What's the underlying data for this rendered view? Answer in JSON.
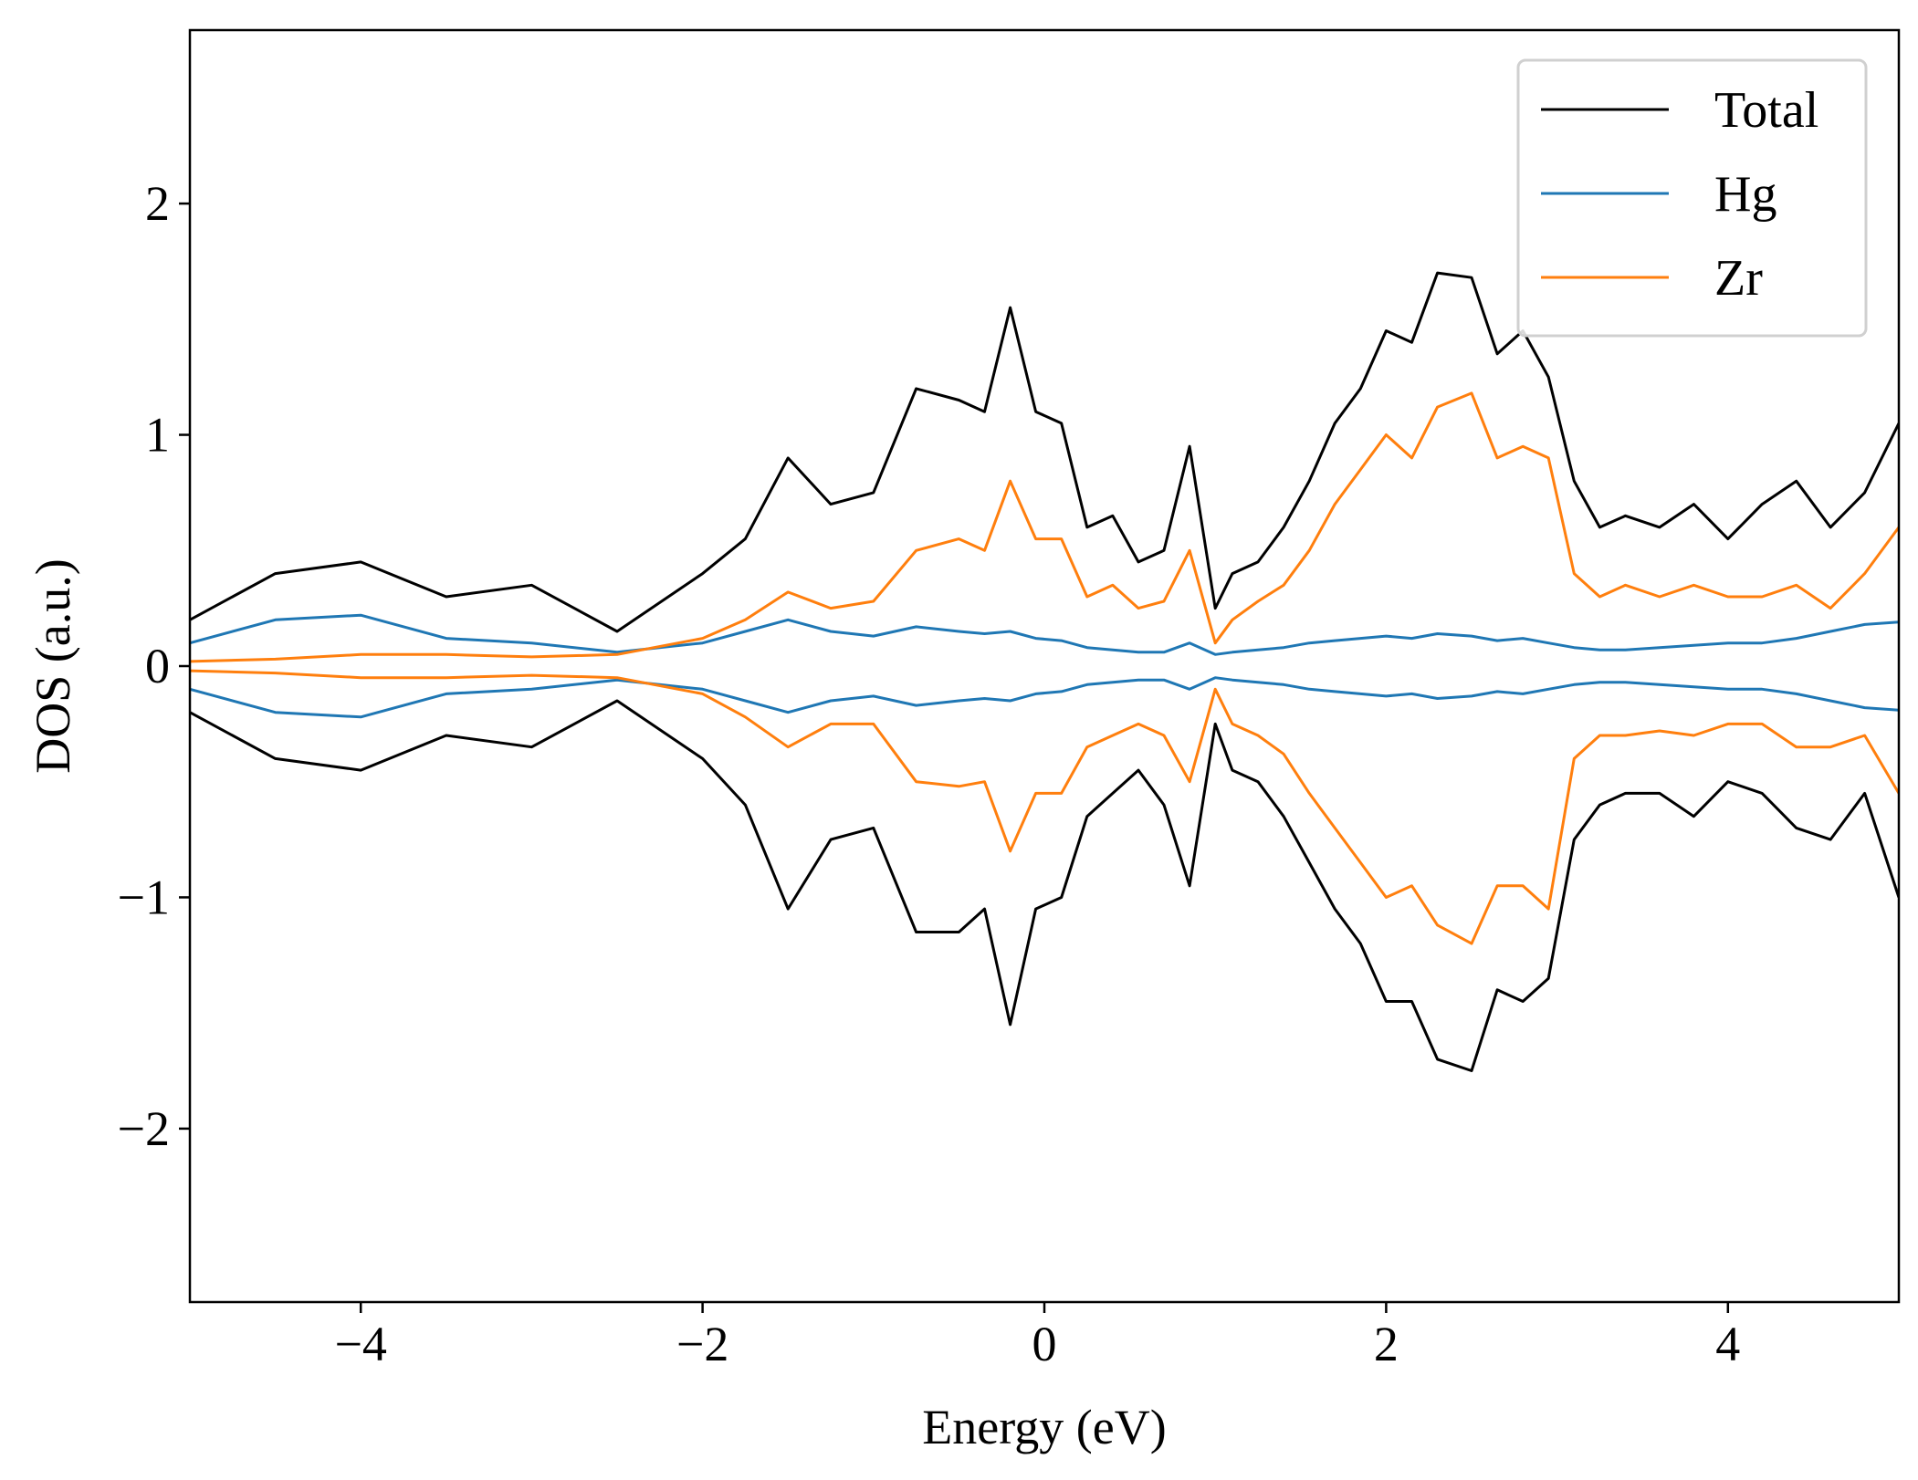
{
  "chart_data": {
    "type": "line",
    "title": "",
    "xlabel": "Energy (eV)",
    "ylabel": "DOS (a.u.)",
    "xlim": [
      -5,
      5
    ],
    "ylim": [
      -2.75,
      2.75
    ],
    "xticks": [
      -4,
      -2,
      0,
      2,
      4
    ],
    "xtick_labels": [
      "−4",
      "−2",
      "0",
      "2",
      "4"
    ],
    "yticks": [
      -2,
      -1,
      0,
      1,
      2
    ],
    "ytick_labels": [
      "−2",
      "−1",
      "0",
      "1",
      "2"
    ],
    "grid": false,
    "legend_position": "top-right",
    "x": [
      -5.0,
      -4.5,
      -4.0,
      -3.5,
      -3.0,
      -2.5,
      -2.0,
      -1.75,
      -1.5,
      -1.25,
      -1.0,
      -0.75,
      -0.5,
      -0.35,
      -0.2,
      -0.05,
      0.1,
      0.25,
      0.4,
      0.55,
      0.7,
      0.85,
      1.0,
      1.1,
      1.25,
      1.4,
      1.55,
      1.7,
      1.85,
      2.0,
      2.15,
      2.3,
      2.5,
      2.65,
      2.8,
      2.95,
      3.1,
      3.25,
      3.4,
      3.6,
      3.8,
      4.0,
      4.2,
      4.4,
      4.6,
      4.8,
      5.0
    ],
    "series": [
      {
        "name": "Total",
        "color": "#000000",
        "up": [
          0.2,
          0.4,
          0.45,
          0.3,
          0.35,
          0.15,
          0.4,
          0.55,
          0.9,
          0.7,
          0.75,
          1.2,
          1.15,
          1.1,
          1.55,
          1.1,
          1.05,
          0.6,
          0.65,
          0.45,
          0.5,
          0.95,
          0.25,
          0.4,
          0.45,
          0.6,
          0.8,
          1.05,
          1.2,
          1.45,
          1.4,
          1.7,
          1.68,
          1.35,
          1.45,
          1.25,
          0.8,
          0.6,
          0.65,
          0.6,
          0.7,
          0.55,
          0.7,
          0.8,
          0.6,
          0.75,
          1.05
        ],
        "down": [
          -0.2,
          -0.4,
          -0.45,
          -0.3,
          -0.35,
          -0.15,
          -0.4,
          -0.6,
          -1.05,
          -0.75,
          -0.7,
          -1.15,
          -1.15,
          -1.05,
          -1.55,
          -1.05,
          -1.0,
          -0.65,
          -0.55,
          -0.45,
          -0.6,
          -0.95,
          -0.25,
          -0.45,
          -0.5,
          -0.65,
          -0.85,
          -1.05,
          -1.2,
          -1.45,
          -1.45,
          -1.7,
          -1.75,
          -1.4,
          -1.45,
          -1.35,
          -0.75,
          -0.6,
          -0.55,
          -0.55,
          -0.65,
          -0.5,
          -0.55,
          -0.7,
          -0.75,
          -0.55,
          -1.0
        ]
      },
      {
        "name": "Hg",
        "color": "#1f77b4",
        "up": [
          0.1,
          0.2,
          0.22,
          0.12,
          0.1,
          0.06,
          0.1,
          0.15,
          0.2,
          0.15,
          0.13,
          0.17,
          0.15,
          0.14,
          0.15,
          0.12,
          0.11,
          0.08,
          0.07,
          0.06,
          0.06,
          0.1,
          0.05,
          0.06,
          0.07,
          0.08,
          0.1,
          0.11,
          0.12,
          0.13,
          0.12,
          0.14,
          0.13,
          0.11,
          0.12,
          0.1,
          0.08,
          0.07,
          0.07,
          0.08,
          0.09,
          0.1,
          0.1,
          0.12,
          0.15,
          0.18,
          0.19
        ],
        "down": [
          -0.1,
          -0.2,
          -0.22,
          -0.12,
          -0.1,
          -0.06,
          -0.1,
          -0.15,
          -0.2,
          -0.15,
          -0.13,
          -0.17,
          -0.15,
          -0.14,
          -0.15,
          -0.12,
          -0.11,
          -0.08,
          -0.07,
          -0.06,
          -0.06,
          -0.1,
          -0.05,
          -0.06,
          -0.07,
          -0.08,
          -0.1,
          -0.11,
          -0.12,
          -0.13,
          -0.12,
          -0.14,
          -0.13,
          -0.11,
          -0.12,
          -0.1,
          -0.08,
          -0.07,
          -0.07,
          -0.08,
          -0.09,
          -0.1,
          -0.1,
          -0.12,
          -0.15,
          -0.18,
          -0.19
        ]
      },
      {
        "name": "Zr",
        "color": "#ff7f0e",
        "up": [
          0.02,
          0.03,
          0.05,
          0.05,
          0.04,
          0.05,
          0.12,
          0.2,
          0.32,
          0.25,
          0.28,
          0.5,
          0.55,
          0.5,
          0.8,
          0.55,
          0.55,
          0.3,
          0.35,
          0.25,
          0.28,
          0.5,
          0.1,
          0.2,
          0.28,
          0.35,
          0.5,
          0.7,
          0.85,
          1.0,
          0.9,
          1.12,
          1.18,
          0.9,
          0.95,
          0.9,
          0.4,
          0.3,
          0.35,
          0.3,
          0.35,
          0.3,
          0.3,
          0.35,
          0.25,
          0.4,
          0.6
        ],
        "down": [
          -0.02,
          -0.03,
          -0.05,
          -0.05,
          -0.04,
          -0.05,
          -0.12,
          -0.22,
          -0.35,
          -0.25,
          -0.25,
          -0.5,
          -0.52,
          -0.5,
          -0.8,
          -0.55,
          -0.55,
          -0.35,
          -0.3,
          -0.25,
          -0.3,
          -0.5,
          -0.1,
          -0.25,
          -0.3,
          -0.38,
          -0.55,
          -0.7,
          -0.85,
          -1.0,
          -0.95,
          -1.12,
          -1.2,
          -0.95,
          -0.95,
          -1.05,
          -0.4,
          -0.3,
          -0.3,
          -0.28,
          -0.3,
          -0.25,
          -0.25,
          -0.35,
          -0.35,
          -0.3,
          -0.55
        ]
      }
    ]
  }
}
